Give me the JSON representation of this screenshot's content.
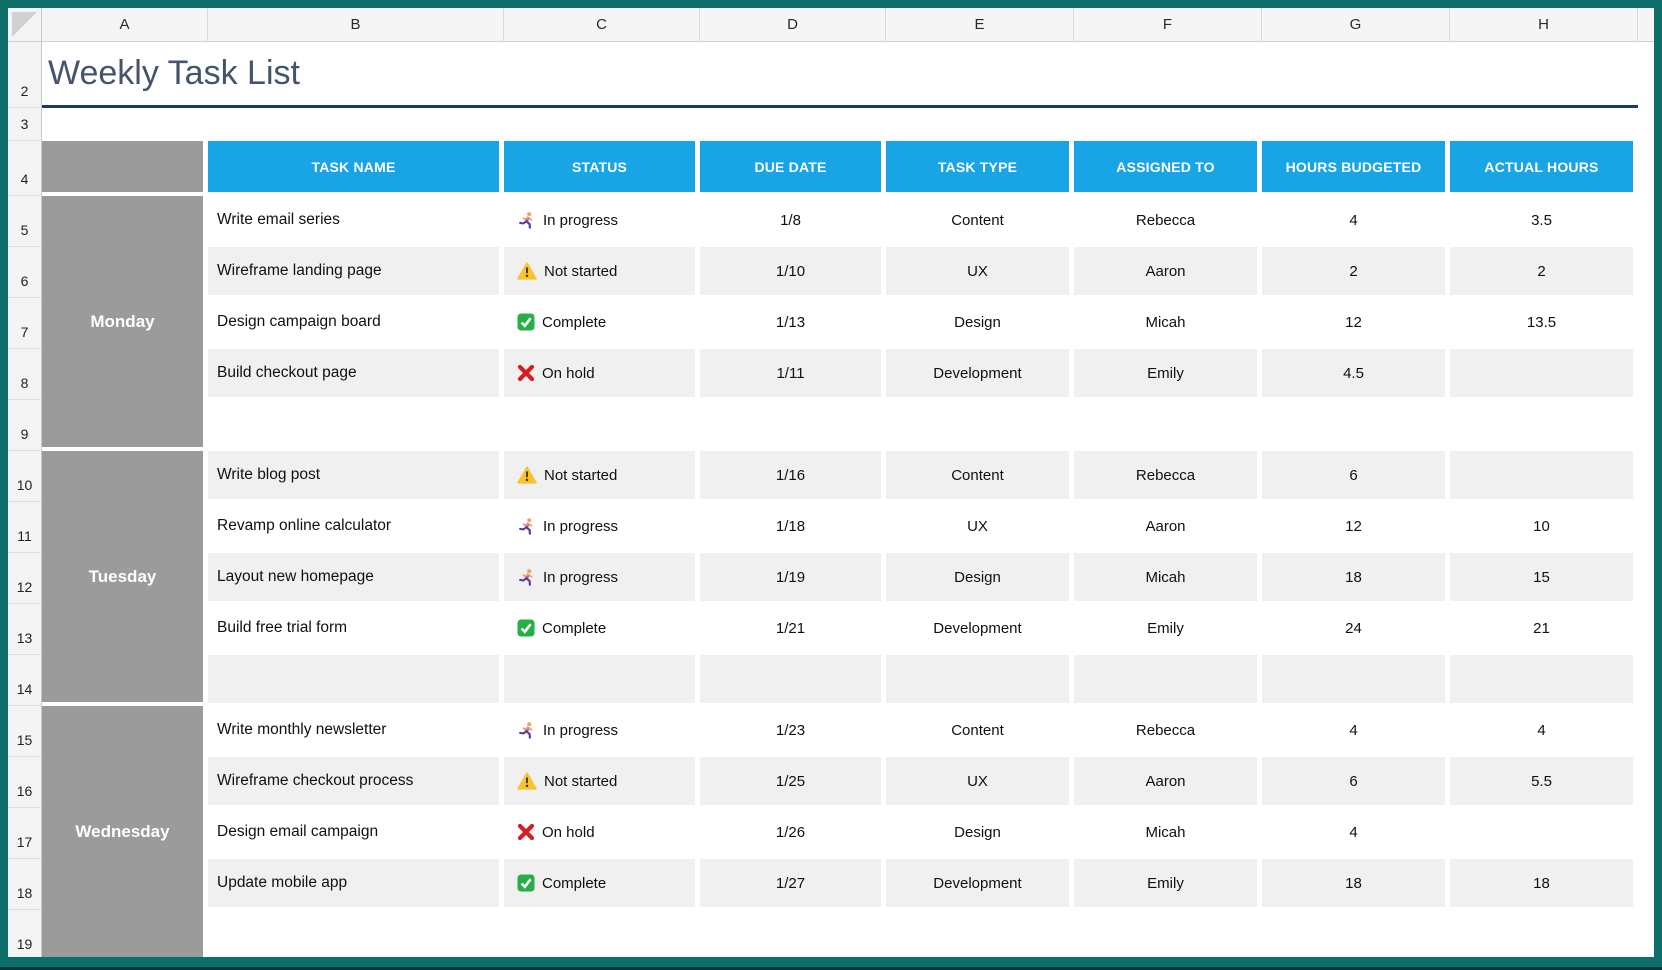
{
  "sheet": {
    "column_letters": [
      "A",
      "B",
      "C",
      "D",
      "E",
      "F",
      "G",
      "H"
    ],
    "row_numbers": [
      "2",
      "3",
      "4",
      "5",
      "6",
      "7",
      "8",
      "9",
      "10",
      "11",
      "12",
      "13",
      "14",
      "15",
      "16",
      "17",
      "18",
      "19"
    ],
    "title": "Weekly Task List",
    "colors": {
      "window_border": "#0d6f69",
      "header_blue": "#19a4e6",
      "day_gray": "#9b9b9b",
      "stripe_gray": "#f0f0f1",
      "title_text": "#44546a",
      "title_underline": "#203864"
    },
    "table": {
      "headers": [
        "TASK NAME",
        "STATUS",
        "DUE DATE",
        "TASK TYPE",
        "ASSIGNED TO",
        "HOURS BUDGETED",
        "ACTUAL HOURS"
      ],
      "days": [
        {
          "day": "Monday",
          "rows": [
            {
              "task": "Write email series",
              "status_icon": "runner-icon",
              "status": "In progress",
              "due": "1/8",
              "type": "Content",
              "assigned": "Rebecca",
              "budgeted": "4",
              "actual": "3.5"
            },
            {
              "task": "Wireframe landing page",
              "status_icon": "warning-icon",
              "status": "Not started",
              "due": "1/10",
              "type": "UX",
              "assigned": "Aaron",
              "budgeted": "2",
              "actual": "2"
            },
            {
              "task": "Design campaign board",
              "status_icon": "check-icon",
              "status": "Complete",
              "due": "1/13",
              "type": "Design",
              "assigned": "Micah",
              "budgeted": "12",
              "actual": "13.5"
            },
            {
              "task": "Build checkout page",
              "status_icon": "x-icon",
              "status": "On hold",
              "due": "1/11",
              "type": "Development",
              "assigned": "Emily",
              "budgeted": "4.5",
              "actual": ""
            },
            {
              "task": "",
              "status_icon": "",
              "status": "",
              "due": "",
              "type": "",
              "assigned": "",
              "budgeted": "",
              "actual": ""
            }
          ]
        },
        {
          "day": "Tuesday",
          "rows": [
            {
              "task": "Write blog post",
              "status_icon": "warning-icon",
              "status": "Not started",
              "due": "1/16",
              "type": "Content",
              "assigned": "Rebecca",
              "budgeted": "6",
              "actual": ""
            },
            {
              "task": "Revamp online calculator",
              "status_icon": "runner-icon",
              "status": "In progress",
              "due": "1/18",
              "type": "UX",
              "assigned": "Aaron",
              "budgeted": "12",
              "actual": "10"
            },
            {
              "task": "Layout new homepage",
              "status_icon": "runner-icon",
              "status": "In progress",
              "due": "1/19",
              "type": "Design",
              "assigned": "Micah",
              "budgeted": "18",
              "actual": "15"
            },
            {
              "task": "Build free trial form",
              "status_icon": "check-icon",
              "status": "Complete",
              "due": "1/21",
              "type": "Development",
              "assigned": "Emily",
              "budgeted": "24",
              "actual": "21"
            },
            {
              "task": "",
              "status_icon": "",
              "status": "",
              "due": "",
              "type": "",
              "assigned": "",
              "budgeted": "",
              "actual": ""
            }
          ]
        },
        {
          "day": "Wednesday",
          "rows": [
            {
              "task": "Write monthly newsletter",
              "status_icon": "runner-icon",
              "status": "In progress",
              "due": "1/23",
              "type": "Content",
              "assigned": "Rebecca",
              "budgeted": "4",
              "actual": "4"
            },
            {
              "task": "Wireframe checkout process",
              "status_icon": "warning-icon",
              "status": "Not started",
              "due": "1/25",
              "type": "UX",
              "assigned": "Aaron",
              "budgeted": "6",
              "actual": "5.5"
            },
            {
              "task": "Design email campaign",
              "status_icon": "x-icon",
              "status": "On hold",
              "due": "1/26",
              "type": "Design",
              "assigned": "Micah",
              "budgeted": "4",
              "actual": ""
            },
            {
              "task": "Update mobile app",
              "status_icon": "check-icon",
              "status": "Complete",
              "due": "1/27",
              "type": "Development",
              "assigned": "Emily",
              "budgeted": "18",
              "actual": "18"
            },
            {
              "task": "",
              "status_icon": "",
              "status": "",
              "due": "",
              "type": "",
              "assigned": "",
              "budgeted": "",
              "actual": ""
            }
          ]
        }
      ]
    }
  }
}
